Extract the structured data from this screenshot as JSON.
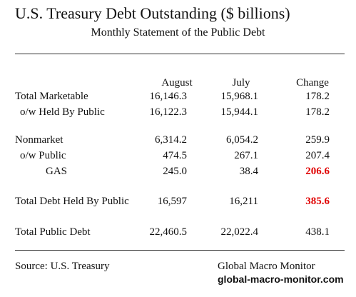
{
  "title": "U.S. Treasury Debt Outstanding  ($ billions)",
  "subtitle": "Monthly Statement of the Public Debt",
  "headers": {
    "august": "August",
    "july": "July",
    "change": "Change"
  },
  "rows": [
    {
      "label": "Total Marketable",
      "august": "16,146.3",
      "july": "15,968.1",
      "change": "178.2",
      "highlight": false
    },
    {
      "label": "o/w Held By Public",
      "august": "16,122.3",
      "july": "15,944.1",
      "change": "178.2",
      "highlight": false
    },
    {
      "label": "Nonmarket",
      "august": "6,314.2",
      "july": "6,054.2",
      "change": "259.9",
      "highlight": false
    },
    {
      "label": "o/w Public",
      "august": "474.5",
      "july": "267.1",
      "change": "207.4",
      "highlight": false
    },
    {
      "label": "GAS",
      "august": "245.0",
      "july": "38.4",
      "change": "206.6",
      "highlight": true
    },
    {
      "label": "Total Debt Held By Public",
      "august": "16,597",
      "july": "16,211",
      "change": "385.6",
      "highlight": true
    },
    {
      "label": "Total Public Debt",
      "august": "22,460.5",
      "july": "22,022.4",
      "change": "438.1",
      "highlight": false
    }
  ],
  "footer": {
    "source": "Source:  U.S. Treasury",
    "brand": "Global Macro Monitor",
    "url": "global-macro-monitor.com"
  },
  "colors": {
    "highlight": "#e00000"
  }
}
